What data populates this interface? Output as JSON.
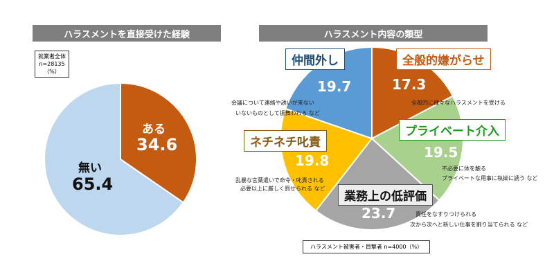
{
  "chart_data": [
    {
      "type": "pie",
      "title": "ハラスメントを直接受けた経験",
      "note": [
        "就業者全体",
        "n=28135",
        "（%）"
      ],
      "categories": [
        "ある",
        "無い"
      ],
      "values": [
        34.6,
        65.4
      ],
      "colors": [
        "#c55a11",
        "#bdd7ee"
      ]
    },
    {
      "type": "pie",
      "title": "ハラスメント内容の類型",
      "note": "ハラスメント被害者・目撃者 n=4000（%）",
      "categories": [
        "全般的嫌がらせ",
        "プライベート介入",
        "業務上の低評価",
        "ネチネチ叱責",
        "仲間外し"
      ],
      "values": [
        17.3,
        19.5,
        23.7,
        19.8,
        19.7
      ],
      "colors": [
        "#c55a11",
        "#a9d18e",
        "#a5a5a5",
        "#ffc000",
        "#5b9bd5"
      ],
      "label_colors": [
        "#c55a11",
        "#1a9a1a",
        "#111111",
        "#8a5a10",
        "#1f4e79"
      ],
      "descriptions": [
        [
          "全般的に様々なハラスメントを受ける"
        ],
        [
          "不必要に体を触る",
          "プライベートな用事に執拗に誘う など"
        ],
        [
          "責任をなすりつけられる",
          "次から次へと新しい仕事を割り当てられる など"
        ],
        [
          "乱暴な言葉遣いで命令・叱責される",
          "必要以上に厳しく罰せられる など"
        ],
        [
          "会議について連絡や誘いが来ない",
          "いないものとして振舞われる など"
        ]
      ]
    }
  ]
}
